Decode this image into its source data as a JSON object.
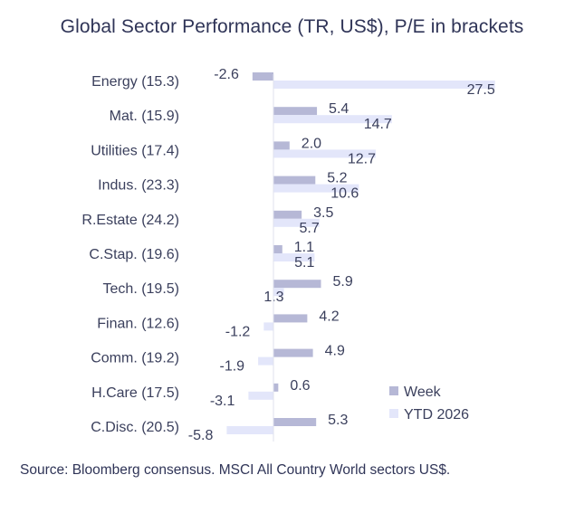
{
  "chart_data": {
    "type": "bar",
    "orientation": "horizontal",
    "title": "Global Sector Performance (TR, US$), P/E in brackets",
    "categories": [
      "Energy (15.3)",
      "Mat. (15.9)",
      "Utilities (17.4)",
      "Indus. (23.3)",
      "R.Estate (24.2)",
      "C.Stap. (19.6)",
      "Tech. (19.5)",
      "Finan. (12.6)",
      "Comm. (19.2)",
      "H.Care (17.5)",
      "C.Disc. (20.5)"
    ],
    "series": [
      {
        "name": "Week",
        "color": "#b6b8d6",
        "values": [
          -2.6,
          5.4,
          2.0,
          5.2,
          3.5,
          1.1,
          5.9,
          4.2,
          4.9,
          0.6,
          5.3
        ],
        "labels": [
          "-2.6",
          "5.4",
          "2.0",
          "5.2",
          "3.5",
          "1.1",
          "5.9",
          "4.2",
          "4.9",
          "0.6",
          "5.3"
        ]
      },
      {
        "name": "YTD 2026",
        "color": "#e3e6fa",
        "values": [
          27.5,
          14.7,
          12.7,
          10.6,
          5.7,
          5.1,
          1.3,
          -1.2,
          -1.9,
          -3.1,
          -5.8
        ],
        "labels": [
          "27.5",
          "14.7",
          "12.7",
          "10.6",
          "5.7",
          "5.1",
          "1.3",
          "-1.2",
          "-1.9",
          "-3.1",
          "-5.8"
        ]
      }
    ],
    "legend": {
      "position": "right",
      "entries": [
        "Week",
        "YTD 2026"
      ]
    },
    "xlabel": "",
    "ylabel": "",
    "grid": false
  },
  "source": "Source: Bloomberg consensus. MSCI All Country World sectors US$."
}
